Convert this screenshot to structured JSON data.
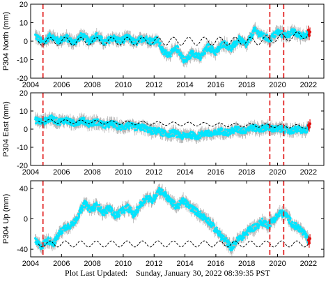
{
  "footer": {
    "label": "Plot Last Updated:",
    "timestamp": "Sunday, January 30, 2022 08:39:35 PST"
  },
  "colors": {
    "data": "#00e5ff",
    "error_bars": "#b4b4b4",
    "model": "#000000",
    "events": "#e01010",
    "recent": "#e01010"
  },
  "chart_data": [
    {
      "type": "scatter",
      "ylabel": "P304 North (mm)",
      "xlim": [
        2004,
        2023
      ],
      "ylim": [
        -20,
        20
      ],
      "xticks": [
        2004,
        2006,
        2008,
        2010,
        2012,
        2014,
        2016,
        2018,
        2020,
        2022
      ],
      "yticks": [
        -20,
        -10,
        0,
        10,
        20
      ],
      "event_lines": [
        2004.8,
        2019.5,
        2020.4
      ],
      "series": [
        {
          "kind": "observed",
          "x": [
            2004.3,
            2004.8,
            2005.3,
            2005.8,
            2006.3,
            2006.8,
            2007.3,
            2007.8,
            2008.3,
            2008.8,
            2009.3,
            2009.8,
            2010.3,
            2010.8,
            2011.3,
            2011.8,
            2012.2,
            2012.6,
            2013.0,
            2013.5,
            2014.0,
            2014.5,
            2015.0,
            2015.5,
            2016.0,
            2016.5,
            2017.0,
            2017.5,
            2018.0,
            2018.5,
            2019.0,
            2019.5,
            2020.0,
            2020.5,
            2021.0,
            2021.5,
            2022.0
          ],
          "y": [
            3,
            -1,
            3,
            0,
            2,
            -1,
            3,
            0,
            3,
            -1,
            2,
            0,
            2,
            -1,
            2,
            0,
            1,
            -6,
            -7,
            -4,
            -11,
            -6,
            -9,
            -3,
            -6,
            -1,
            -4,
            1,
            -2,
            6,
            3,
            1,
            5,
            3,
            5,
            3,
            4
          ]
        },
        {
          "kind": "model",
          "x": [
            2004.5,
            2005.5,
            2006.5,
            2007.5,
            2008.5,
            2009.5,
            2010.5,
            2011.5,
            2012.5,
            2013.5,
            2014.5,
            2015.5,
            2016.5,
            2017.5,
            2018.5,
            2019.5,
            2020.5,
            2021.5,
            2022.0
          ],
          "y": [
            0,
            0,
            0,
            0,
            0,
            0,
            0,
            0,
            0,
            0,
            0,
            0,
            0,
            0,
            0,
            1,
            2,
            3,
            4
          ],
          "seasonal_amplitude": 2.2
        },
        {
          "kind": "recent",
          "x": [
            2022.0,
            2022.05,
            2022.1
          ],
          "y": [
            6,
            3,
            5
          ]
        }
      ]
    },
    {
      "type": "scatter",
      "ylabel": "P304 East (mm)",
      "xlim": [
        2004,
        2023
      ],
      "ylim": [
        -20,
        20
      ],
      "xticks": [
        2004,
        2006,
        2008,
        2010,
        2012,
        2014,
        2016,
        2018,
        2020,
        2022
      ],
      "yticks": [
        -20,
        -10,
        0,
        10,
        20
      ],
      "event_lines": [
        2004.8,
        2019.5,
        2020.4
      ],
      "series": [
        {
          "kind": "observed",
          "x": [
            2004.3,
            2004.8,
            2005.3,
            2005.8,
            2006.3,
            2006.8,
            2007.3,
            2007.8,
            2008.3,
            2008.8,
            2009.3,
            2009.8,
            2010.3,
            2010.8,
            2011.3,
            2011.8,
            2012.3,
            2012.8,
            2013.3,
            2013.8,
            2014.3,
            2014.8,
            2015.3,
            2015.8,
            2016.3,
            2016.8,
            2017.3,
            2017.8,
            2018.3,
            2018.8,
            2019.3,
            2019.8,
            2020.3,
            2020.8,
            2021.3,
            2021.8,
            2022.0
          ],
          "y": [
            5,
            4,
            6,
            4,
            5,
            3,
            5,
            3,
            4,
            2,
            3,
            1,
            2,
            1,
            1,
            -1,
            -1,
            -3,
            -2,
            -4,
            -3,
            -4,
            -2,
            -3,
            -1,
            -2,
            0,
            -1,
            1,
            0,
            1,
            0,
            0,
            -1,
            0,
            -1,
            1
          ]
        },
        {
          "kind": "model",
          "x": [
            2004.5,
            2005.5,
            2006.5,
            2007.5,
            2008.5,
            2009.5,
            2010.5,
            2011.5,
            2012.5,
            2013.5,
            2014.5,
            2015.5,
            2016.5,
            2017.5,
            2018.5,
            2019.5,
            2020.5,
            2021.5,
            2022.0
          ],
          "y": [
            4.5,
            4.3,
            4.1,
            4.0,
            3.8,
            3.6,
            3.4,
            3.3,
            3.1,
            2.9,
            2.8,
            2.6,
            2.4,
            2.2,
            2.1,
            1.9,
            1.7,
            1.5,
            1.4
          ],
          "seasonal_amplitude": 1.0
        },
        {
          "kind": "recent",
          "x": [
            2022.0,
            2022.05,
            2022.1
          ],
          "y": [
            2,
            1,
            3
          ]
        }
      ]
    },
    {
      "type": "scatter",
      "ylabel": "P304 Up (mm)",
      "xlim": [
        2004,
        2023
      ],
      "ylim": [
        -50,
        50
      ],
      "xticks": [
        2004,
        2006,
        2008,
        2010,
        2012,
        2014,
        2016,
        2018,
        2020,
        2022
      ],
      "yticks": [
        -40,
        0,
        40
      ],
      "event_lines": [
        2004.8,
        2019.5,
        2020.4
      ],
      "series": [
        {
          "kind": "observed",
          "x": [
            2004.3,
            2004.7,
            2005.1,
            2005.5,
            2005.9,
            2006.3,
            2006.7,
            2007.1,
            2007.5,
            2007.9,
            2008.3,
            2008.7,
            2009.1,
            2009.5,
            2009.9,
            2010.3,
            2010.7,
            2011.1,
            2011.5,
            2011.9,
            2012.3,
            2012.7,
            2013.1,
            2013.5,
            2013.9,
            2014.3,
            2014.7,
            2015.1,
            2015.5,
            2015.9,
            2016.3,
            2016.7,
            2017.0,
            2017.4,
            2017.8,
            2018.2,
            2018.6,
            2019.0,
            2019.4,
            2019.8,
            2020.2,
            2020.6,
            2021.0,
            2021.4,
            2021.8,
            2022.0
          ],
          "y": [
            -30,
            -36,
            -28,
            -32,
            -18,
            -10,
            -8,
            5,
            20,
            12,
            18,
            8,
            14,
            4,
            10,
            15,
            5,
            18,
            28,
            24,
            38,
            32,
            22,
            16,
            24,
            16,
            10,
            4,
            -2,
            -12,
            -22,
            -30,
            -38,
            -28,
            -22,
            -14,
            -10,
            -4,
            -8,
            0,
            8,
            4,
            -8,
            -12,
            -22,
            -28
          ]
        },
        {
          "kind": "model",
          "x": [
            2004.5,
            2005.5,
            2006.5,
            2007.5,
            2008.5,
            2009.5,
            2010.5,
            2011.5,
            2012.5,
            2013.5,
            2014.5,
            2015.5,
            2016.5,
            2017.5,
            2018.5,
            2019.5,
            2020.5,
            2021.5,
            2022.0
          ],
          "y": [
            -33,
            -33,
            -33,
            -33,
            -33,
            -33,
            -33,
            -33,
            -33,
            -33,
            -33,
            -33,
            -33,
            -33,
            -33,
            -33,
            -33,
            -33,
            -33
          ],
          "seasonal_amplitude": 4.0
        },
        {
          "kind": "recent",
          "x": [
            2022.0,
            2022.05,
            2022.1
          ],
          "y": [
            -28,
            -32,
            -26
          ]
        }
      ]
    }
  ]
}
